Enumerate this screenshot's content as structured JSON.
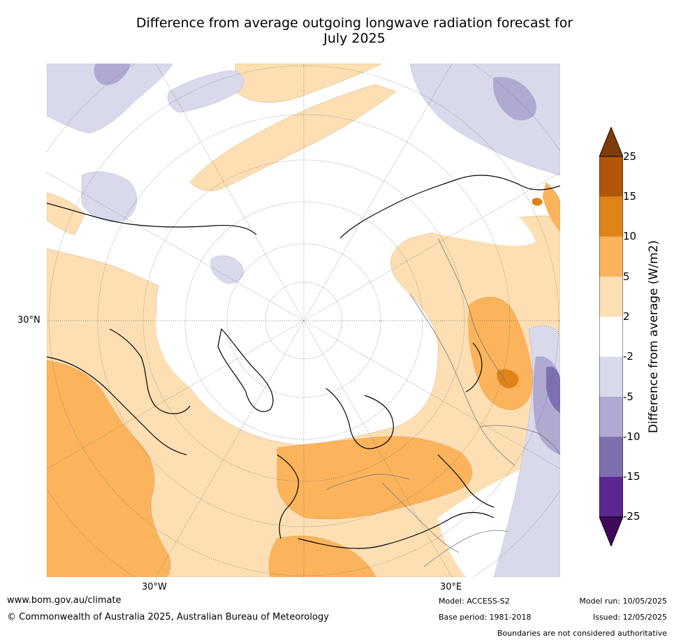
{
  "title_line1": "Difference from average outgoing longwave radiation forecast for",
  "title_line2": "July 2025",
  "map": {
    "latitude_label": "30°N",
    "longitude_labels": {
      "west": "30°W",
      "east": "30°E"
    },
    "projection": "north polar stereographic",
    "palette": {
      "neg25": "#3f0a59",
      "neg15": "#5b2791",
      "neg10": "#7e6fb0",
      "neg5": "#b0a9d1",
      "neg2": "#d9d9ec",
      "neutral": "#ffffff",
      "pos2": "#fddfb3",
      "pos5": "#fbb45c",
      "pos10": "#e08318",
      "pos15": "#b15609",
      "pos25": "#7f3b08"
    }
  },
  "colorbar": {
    "label": "Difference from average (W/m2)",
    "ticks": [
      "25",
      "15",
      "10",
      "5",
      "2",
      "-2",
      "-5",
      "-10",
      "-15",
      "-25"
    ],
    "colors": [
      "#b15609",
      "#e08318",
      "#fbb45c",
      "#fddfb3",
      "#ffffff",
      "#d9d9ec",
      "#b0a9d1",
      "#7e6fb0",
      "#5b2791"
    ],
    "extend_top_color": "#7f3b08",
    "extend_bottom_color": "#3f0a59"
  },
  "footer": {
    "website": "www.bom.gov.au/climate",
    "copyright": "© Commonwealth of Australia 2025, Australian Bureau of Meteorology",
    "model": "Model: ACCESS-S2",
    "base_period": "Base period: 1981-2018",
    "model_run": "Model run: 10/05/2025",
    "issued": "Issued: 12/05/2025",
    "disclaimer": "Boundaries are not considered authoritative"
  }
}
